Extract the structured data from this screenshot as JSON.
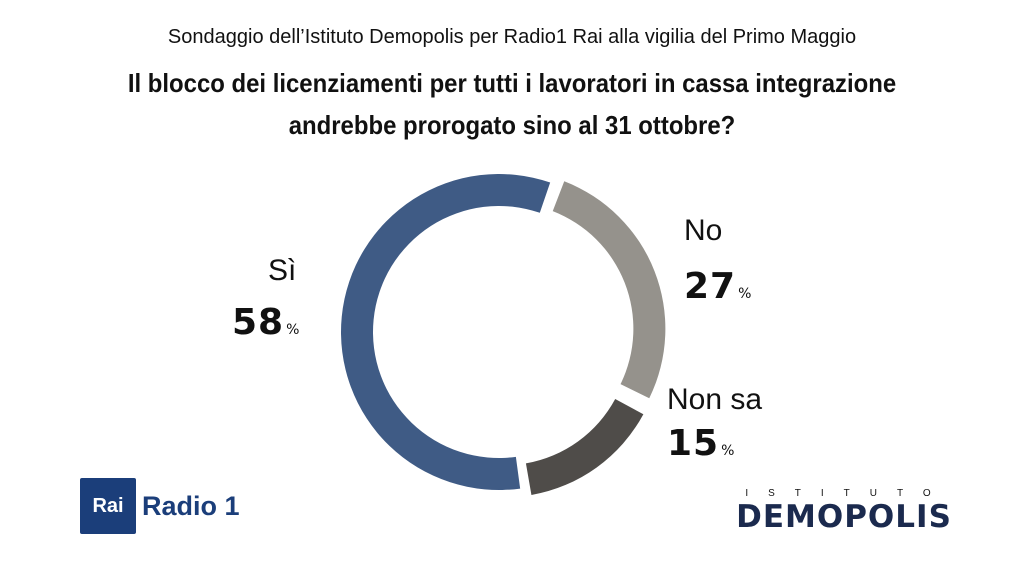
{
  "header": {
    "subtitle": "Sondaggio dell’Istituto Demopolis per Radio1 Rai alla vigilia del Primo Maggio",
    "title_line1": "Il blocco dei licenziamenti per tutti i lavoratori in cassa integrazione",
    "title_line2": "andrebbe prorogato sino al 31 ottobre?"
  },
  "chart_data": {
    "type": "pie",
    "style": "donut",
    "categories": [
      "No",
      "Non sa",
      "Sì"
    ],
    "values": [
      27,
      15,
      58
    ],
    "unit": "%",
    "colors": [
      "#95928c",
      "#4f4c49",
      "#3f5b85"
    ]
  },
  "labels": {
    "si": {
      "name": "Sì",
      "value": "58",
      "unit": "%"
    },
    "no": {
      "name": "No",
      "value": "27",
      "unit": "%"
    },
    "nonsa": {
      "name": "Non sa",
      "value": "15",
      "unit": "%"
    }
  },
  "logos": {
    "rai_box": "Rai",
    "rai_radio": "Radio 1",
    "demopolis_top": "ISTITUTO",
    "demopolis_main": "DEMOPOLIS",
    "rai_color": "#1b3e7a",
    "demopolis_color": "#1b2a4e"
  }
}
